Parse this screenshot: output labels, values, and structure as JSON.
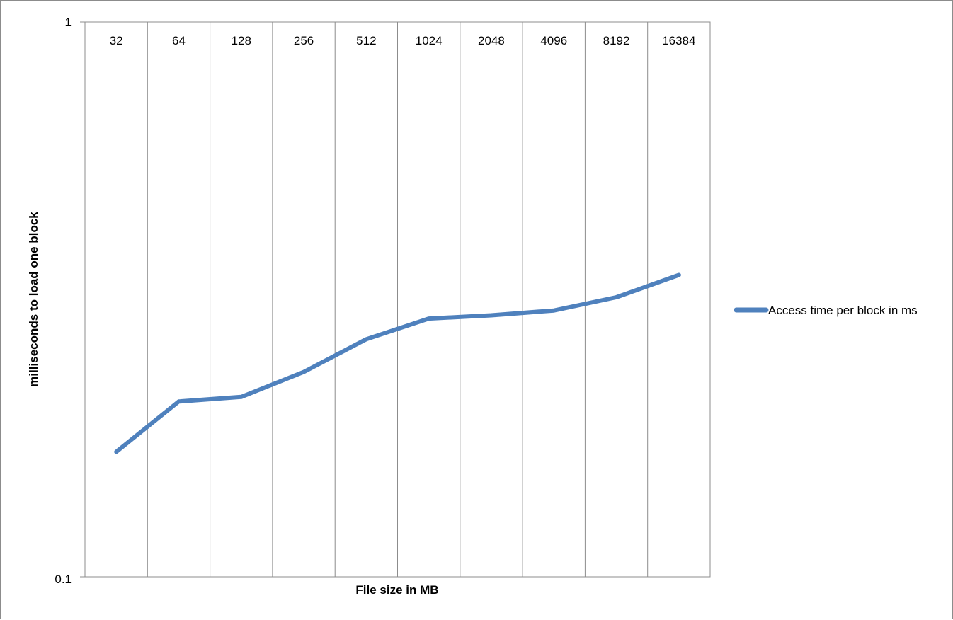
{
  "chart_data": {
    "type": "line",
    "title": "",
    "xlabel": "File size in MB",
    "ylabel": "milliseconds to load one block",
    "y_scale": "log",
    "ylim": [
      0.1,
      1
    ],
    "y_ticks": [
      "1",
      "0.1"
    ],
    "categories": [
      "32",
      "64",
      "128",
      "256",
      "512",
      "1024",
      "2048",
      "4096",
      "8192",
      "16384"
    ],
    "series": [
      {
        "name": "Access time per block in ms",
        "color": "#4f81bd",
        "values": [
          0.168,
          0.207,
          0.211,
          0.234,
          0.268,
          0.292,
          0.296,
          0.302,
          0.319,
          0.35
        ]
      }
    ],
    "grid": "vertical",
    "legend_position": "right",
    "x_labels_position": "top"
  }
}
